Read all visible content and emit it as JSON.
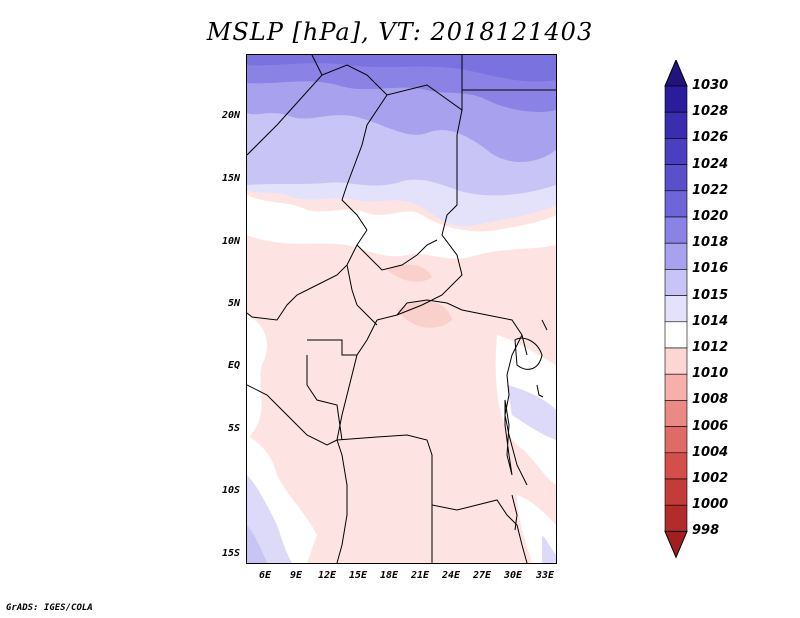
{
  "title": "MSLP [hPa], VT: 2018121403",
  "footer": "GrADS: IGES/COLA",
  "map": {
    "lat_ticks": [
      "20N",
      "15N",
      "10N",
      "5N",
      "EQ",
      "5S",
      "10S",
      "15S"
    ],
    "lon_ticks": [
      "6E",
      "9E",
      "12E",
      "15E",
      "18E",
      "21E",
      "24E",
      "27E",
      "30E",
      "33E"
    ]
  },
  "colorbar": {
    "levels": [
      "1030",
      "1028",
      "1026",
      "1024",
      "1022",
      "1020",
      "1018",
      "1016",
      "1015",
      "1014",
      "1012",
      "1010",
      "1008",
      "1006",
      "1004",
      "1002",
      "1000",
      "998"
    ],
    "colors": [
      "#2a1c9c",
      "#3a2db0",
      "#4a3fc0",
      "#5a50cc",
      "#6e66d8",
      "#8a82e4",
      "#a8a2ee",
      "#c8c4f5",
      "#e4e2fb",
      "#ffffff",
      "#fbd6d3",
      "#f5b0ab",
      "#eb8a85",
      "#e06a66",
      "#d44f4c",
      "#c43c3a",
      "#b22c2b"
    ],
    "top_arrow": "#22147e",
    "bottom_arrow": "#a11f1f"
  },
  "fields": {
    "high": "#9a94ea",
    "mid": "#bcb8f2",
    "light": "#dcdaf8",
    "white": "#ffffff",
    "pink": "#fde4e2",
    "pink2": "#f9d0cc"
  }
}
